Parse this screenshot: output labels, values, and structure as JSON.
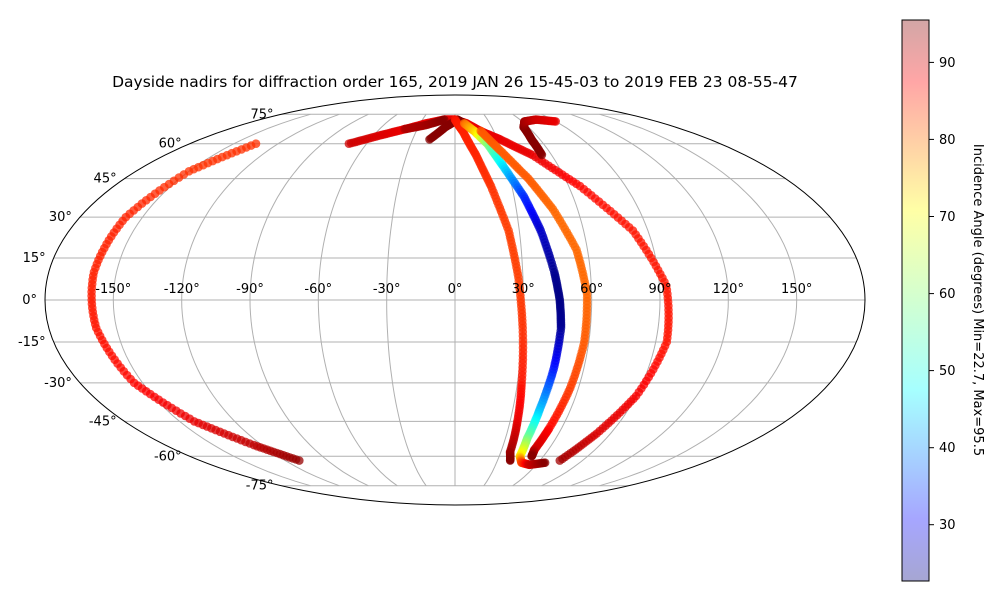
{
  "chart_data": {
    "type": "scatter",
    "projection": "mollweide",
    "title": "Dayside nadirs for diffraction order 165, 2019 JAN 26 15-45-03 to 2019 FEB 23 08-55-47",
    "longitude_ticks": [
      "-150°",
      "-120°",
      "-90°",
      "-60°",
      "-30°",
      "0°",
      "30°",
      "60°",
      "90°",
      "120°",
      "150°"
    ],
    "latitude_ticks": [
      "75°",
      "60°",
      "45°",
      "30°",
      "15°",
      "0°",
      "-15°",
      "-30°",
      "-45°",
      "-60°",
      "-75°"
    ],
    "grid": true,
    "colorbar": {
      "label": "Incidence Angle (degrees) Min=22.7, Max=95.5",
      "min": 22.7,
      "max": 95.5,
      "ticks": [
        "30",
        "40",
        "50",
        "60",
        "70",
        "80",
        "90"
      ],
      "tick_values": [
        30,
        40,
        50,
        60,
        70,
        80,
        90
      ],
      "colormap": "jet"
    },
    "series": [
      {
        "points": [
          [
            -135,
            60,
            83
          ],
          [
            -150,
            48,
            83
          ],
          [
            -158,
            30,
            84
          ],
          [
            -160,
            10,
            84
          ],
          [
            -159,
            -10,
            85
          ],
          [
            -154,
            -30,
            86
          ],
          [
            -142,
            -45,
            88
          ],
          [
            -125,
            -55,
            91
          ],
          [
            -110,
            -62,
            94
          ]
        ]
      },
      {
        "points": [
          [
            -72,
            60,
            90
          ],
          [
            -55,
            64,
            89
          ],
          [
            -40,
            67,
            88
          ],
          [
            -25,
            70,
            88
          ],
          [
            -10,
            72,
            88
          ],
          [
            0,
            72,
            88
          ],
          [
            10,
            70,
            88
          ],
          [
            20,
            66,
            88
          ],
          [
            32,
            62,
            88
          ],
          [
            48,
            55,
            88
          ],
          [
            66,
            42,
            86
          ],
          [
            83,
            25,
            85
          ],
          [
            93,
            5,
            85
          ],
          [
            95,
            -15,
            85
          ],
          [
            90,
            -35,
            87
          ],
          [
            82,
            -50,
            89
          ],
          [
            74,
            -62,
            93
          ]
        ]
      },
      {
        "points": [
          [
            -40,
            67,
            92
          ],
          [
            -25,
            69,
            93
          ],
          [
            -10,
            72,
            95
          ]
        ]
      },
      {
        "points": [
          [
            -18,
            62,
            95
          ],
          [
            -8,
            68,
            95
          ],
          [
            2,
            72,
            95
          ],
          [
            8,
            70,
            95
          ]
        ]
      },
      {
        "points": [
          [
            0,
            72,
            85
          ],
          [
            6,
            66,
            84
          ],
          [
            13,
            55,
            84
          ],
          [
            19,
            42,
            83
          ],
          [
            25,
            25,
            82
          ],
          [
            28,
            8,
            82
          ],
          [
            30,
            -10,
            83
          ],
          [
            32,
            -30,
            85
          ],
          [
            34,
            -45,
            88
          ],
          [
            36,
            -58,
            93
          ],
          [
            39,
            -62,
            95
          ]
        ]
      },
      {
        "points": [
          [
            8,
            70,
            79
          ],
          [
            15,
            66,
            72
          ],
          [
            22,
            60,
            60
          ],
          [
            28,
            50,
            48
          ],
          [
            35,
            38,
            35
          ],
          [
            40,
            25,
            28
          ],
          [
            44,
            10,
            24
          ],
          [
            46,
            0,
            23
          ],
          [
            47,
            -10,
            24
          ],
          [
            46,
            -25,
            33
          ],
          [
            44,
            -40,
            45
          ],
          [
            43,
            -52,
            58
          ],
          [
            44,
            -60,
            70
          ],
          [
            48,
            -63,
            81
          ],
          [
            55,
            -64,
            90
          ],
          [
            65,
            -63,
            95
          ]
        ]
      },
      {
        "points": [
          [
            20,
            66,
            80
          ],
          [
            30,
            56,
            80
          ],
          [
            40,
            45,
            80
          ],
          [
            48,
            33,
            79
          ],
          [
            55,
            18,
            79
          ],
          [
            58,
            2,
            79
          ],
          [
            58,
            -15,
            80
          ],
          [
            56,
            -32,
            82
          ],
          [
            53,
            -48,
            86
          ],
          [
            51,
            -57,
            90
          ],
          [
            52,
            -60,
            95
          ]
        ]
      },
      {
        "points": [
          [
            54,
            55,
            95
          ],
          [
            54,
            62,
            95
          ],
          [
            56,
            68,
            95
          ],
          [
            62,
            71,
            93
          ],
          [
            75,
            72,
            90
          ],
          [
            90,
            71,
            88
          ]
        ]
      }
    ]
  }
}
